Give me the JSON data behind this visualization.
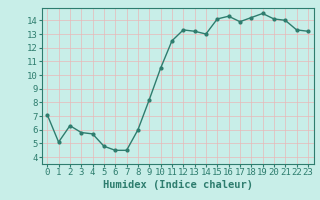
{
  "x": [
    0,
    1,
    2,
    3,
    4,
    5,
    6,
    7,
    8,
    9,
    10,
    11,
    12,
    13,
    14,
    15,
    16,
    17,
    18,
    19,
    20,
    21,
    22,
    23
  ],
  "y": [
    7.1,
    5.1,
    6.3,
    5.8,
    5.7,
    4.8,
    4.5,
    4.5,
    6.0,
    8.2,
    10.5,
    12.5,
    13.3,
    13.2,
    13.0,
    14.1,
    14.3,
    13.9,
    14.2,
    14.5,
    14.1,
    14.0,
    13.3,
    13.2
  ],
  "line_color": "#2e7d6e",
  "marker": "o",
  "marker_size": 2.0,
  "bg_color": "#c8eee8",
  "grid_color": "#b0d8d0",
  "xlabel": "Humidex (Indice chaleur)",
  "ylim": [
    3.5,
    14.9
  ],
  "yticks": [
    4,
    5,
    6,
    7,
    8,
    9,
    10,
    11,
    12,
    13,
    14
  ],
  "xticks": [
    0,
    1,
    2,
    3,
    4,
    5,
    6,
    7,
    8,
    9,
    10,
    11,
    12,
    13,
    14,
    15,
    16,
    17,
    18,
    19,
    20,
    21,
    22,
    23
  ],
  "xlabel_fontsize": 7.5,
  "tick_fontsize": 6.5,
  "line_width": 1.0,
  "spine_color": "#2e7d6e"
}
